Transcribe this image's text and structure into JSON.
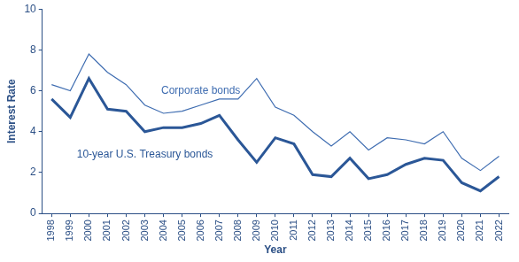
{
  "chart_data": {
    "type": "line",
    "x_label": "Year",
    "y_label": "Interest Rate",
    "categories": [
      "1998",
      "1999",
      "2000",
      "2001",
      "2002",
      "2003",
      "2004",
      "2005",
      "2006",
      "2007",
      "2008",
      "2009",
      "2010",
      "2011",
      "2012",
      "2013",
      "2014",
      "2015",
      "2016",
      "2017",
      "2018",
      "2019",
      "2020",
      "2021",
      "2022"
    ],
    "series": [
      {
        "name": "Corporate bonds",
        "color": "#3f6db1",
        "line_style": "thin",
        "marker": "none",
        "values": [
          6.3,
          6.0,
          7.8,
          6.9,
          6.3,
          5.3,
          4.9,
          5.0,
          5.3,
          5.6,
          5.6,
          6.6,
          5.2,
          4.8,
          4.0,
          3.3,
          4.0,
          3.1,
          3.7,
          3.6,
          3.4,
          4.0,
          2.7,
          2.1,
          2.8
        ]
      },
      {
        "name": "10-year U.S. Treasury bonds",
        "color": "#2b5797",
        "line_style": "thick",
        "marker": "none",
        "values": [
          5.6,
          4.7,
          6.6,
          5.1,
          5.0,
          4.0,
          4.2,
          4.2,
          4.4,
          4.8,
          3.6,
          2.5,
          3.7,
          3.4,
          1.9,
          1.8,
          2.7,
          1.7,
          1.9,
          2.4,
          2.7,
          2.6,
          1.5,
          1.1,
          1.8
        ]
      }
    ],
    "ylim": [
      0,
      10
    ],
    "yticks": [
      0,
      2,
      4,
      6,
      8,
      10
    ],
    "grid": false
  }
}
